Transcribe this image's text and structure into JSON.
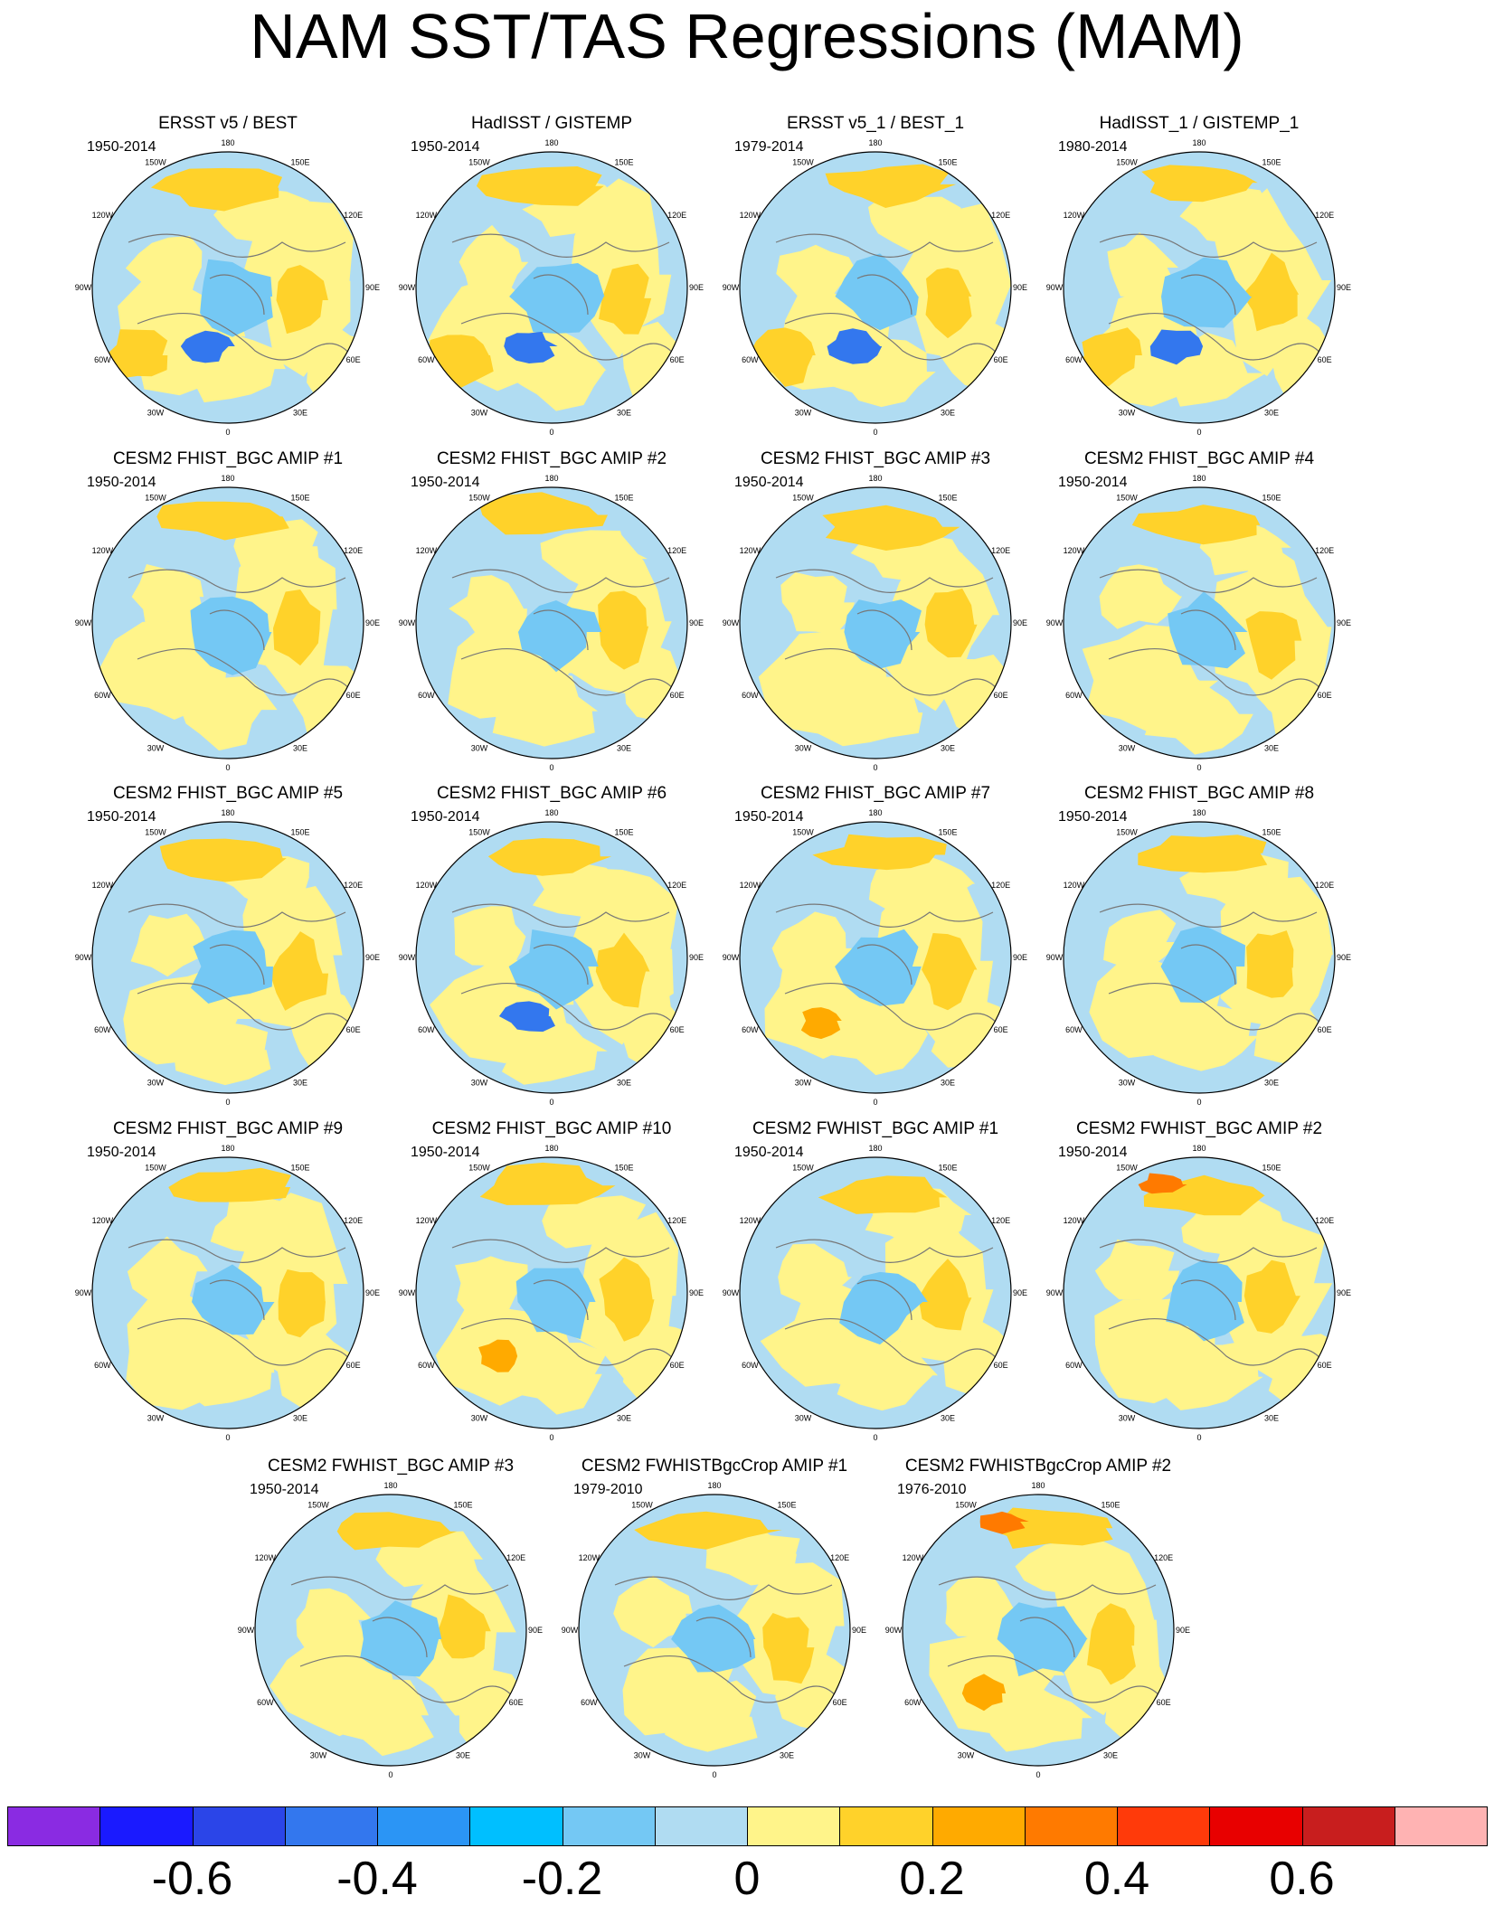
{
  "title": "NAM SST/TAS Regressions (MAM)",
  "lon_labels": [
    "180",
    "150E",
    "120E",
    "90E",
    "60E",
    "30E",
    "0",
    "30W",
    "60W",
    "90W",
    "120W",
    "150W"
  ],
  "panels": [
    {
      "title": "ERSST v5 / BEST",
      "period": "1950-2014"
    },
    {
      "title": "HadISST / GISTEMP",
      "period": "1950-2014"
    },
    {
      "title": "ERSST v5_1 / BEST_1",
      "period": "1979-2014"
    },
    {
      "title": "HadISST_1 / GISTEMP_1",
      "period": "1980-2014"
    },
    {
      "title": "CESM2 FHIST_BGC AMIP #1",
      "period": "1950-2014"
    },
    {
      "title": "CESM2 FHIST_BGC AMIP #2",
      "period": "1950-2014"
    },
    {
      "title": "CESM2 FHIST_BGC AMIP #3",
      "period": "1950-2014"
    },
    {
      "title": "CESM2 FHIST_BGC AMIP #4",
      "period": "1950-2014"
    },
    {
      "title": "CESM2 FHIST_BGC AMIP #5",
      "period": "1950-2014"
    },
    {
      "title": "CESM2 FHIST_BGC AMIP #6",
      "period": "1950-2014"
    },
    {
      "title": "CESM2 FHIST_BGC AMIP #7",
      "period": "1950-2014"
    },
    {
      "title": "CESM2 FHIST_BGC AMIP #8",
      "period": "1950-2014"
    },
    {
      "title": "CESM2 FHIST_BGC AMIP #9",
      "period": "1950-2014"
    },
    {
      "title": "CESM2 FHIST_BGC AMIP #10",
      "period": "1950-2014"
    },
    {
      "title": "CESM2 FWHIST_BGC AMIP #1",
      "period": "1950-2014"
    },
    {
      "title": "CESM2 FWHIST_BGC AMIP #2",
      "period": "1950-2014"
    },
    {
      "title": "CESM2 FWHIST_BGC AMIP #3",
      "period": "1950-2014"
    },
    {
      "title": "CESM2 FWHISTBgcCrop AMIP #1",
      "period": "1979-2010"
    },
    {
      "title": "CESM2 FWHISTBgcCrop AMIP #2",
      "period": "1976-2010"
    }
  ],
  "colorbar": {
    "colors": [
      "#8a2be2",
      "#1a1aff",
      "#2b45e8",
      "#3377ee",
      "#2b95f5",
      "#00bfff",
      "#74c8f4",
      "#b0dcf2",
      "#fff48a",
      "#ffd22a",
      "#ffaa00",
      "#ff7a00",
      "#ff3a0a",
      "#e80000",
      "#c81e1e",
      "#ffb3b3"
    ],
    "tick_labels": [
      "-0.6",
      "-0.4",
      "-0.2",
      "0",
      "0.2",
      "0.4",
      "0.6"
    ],
    "tick_values": [
      -0.6,
      -0.4,
      -0.2,
      0,
      0.2,
      0.4,
      0.6
    ]
  }
}
